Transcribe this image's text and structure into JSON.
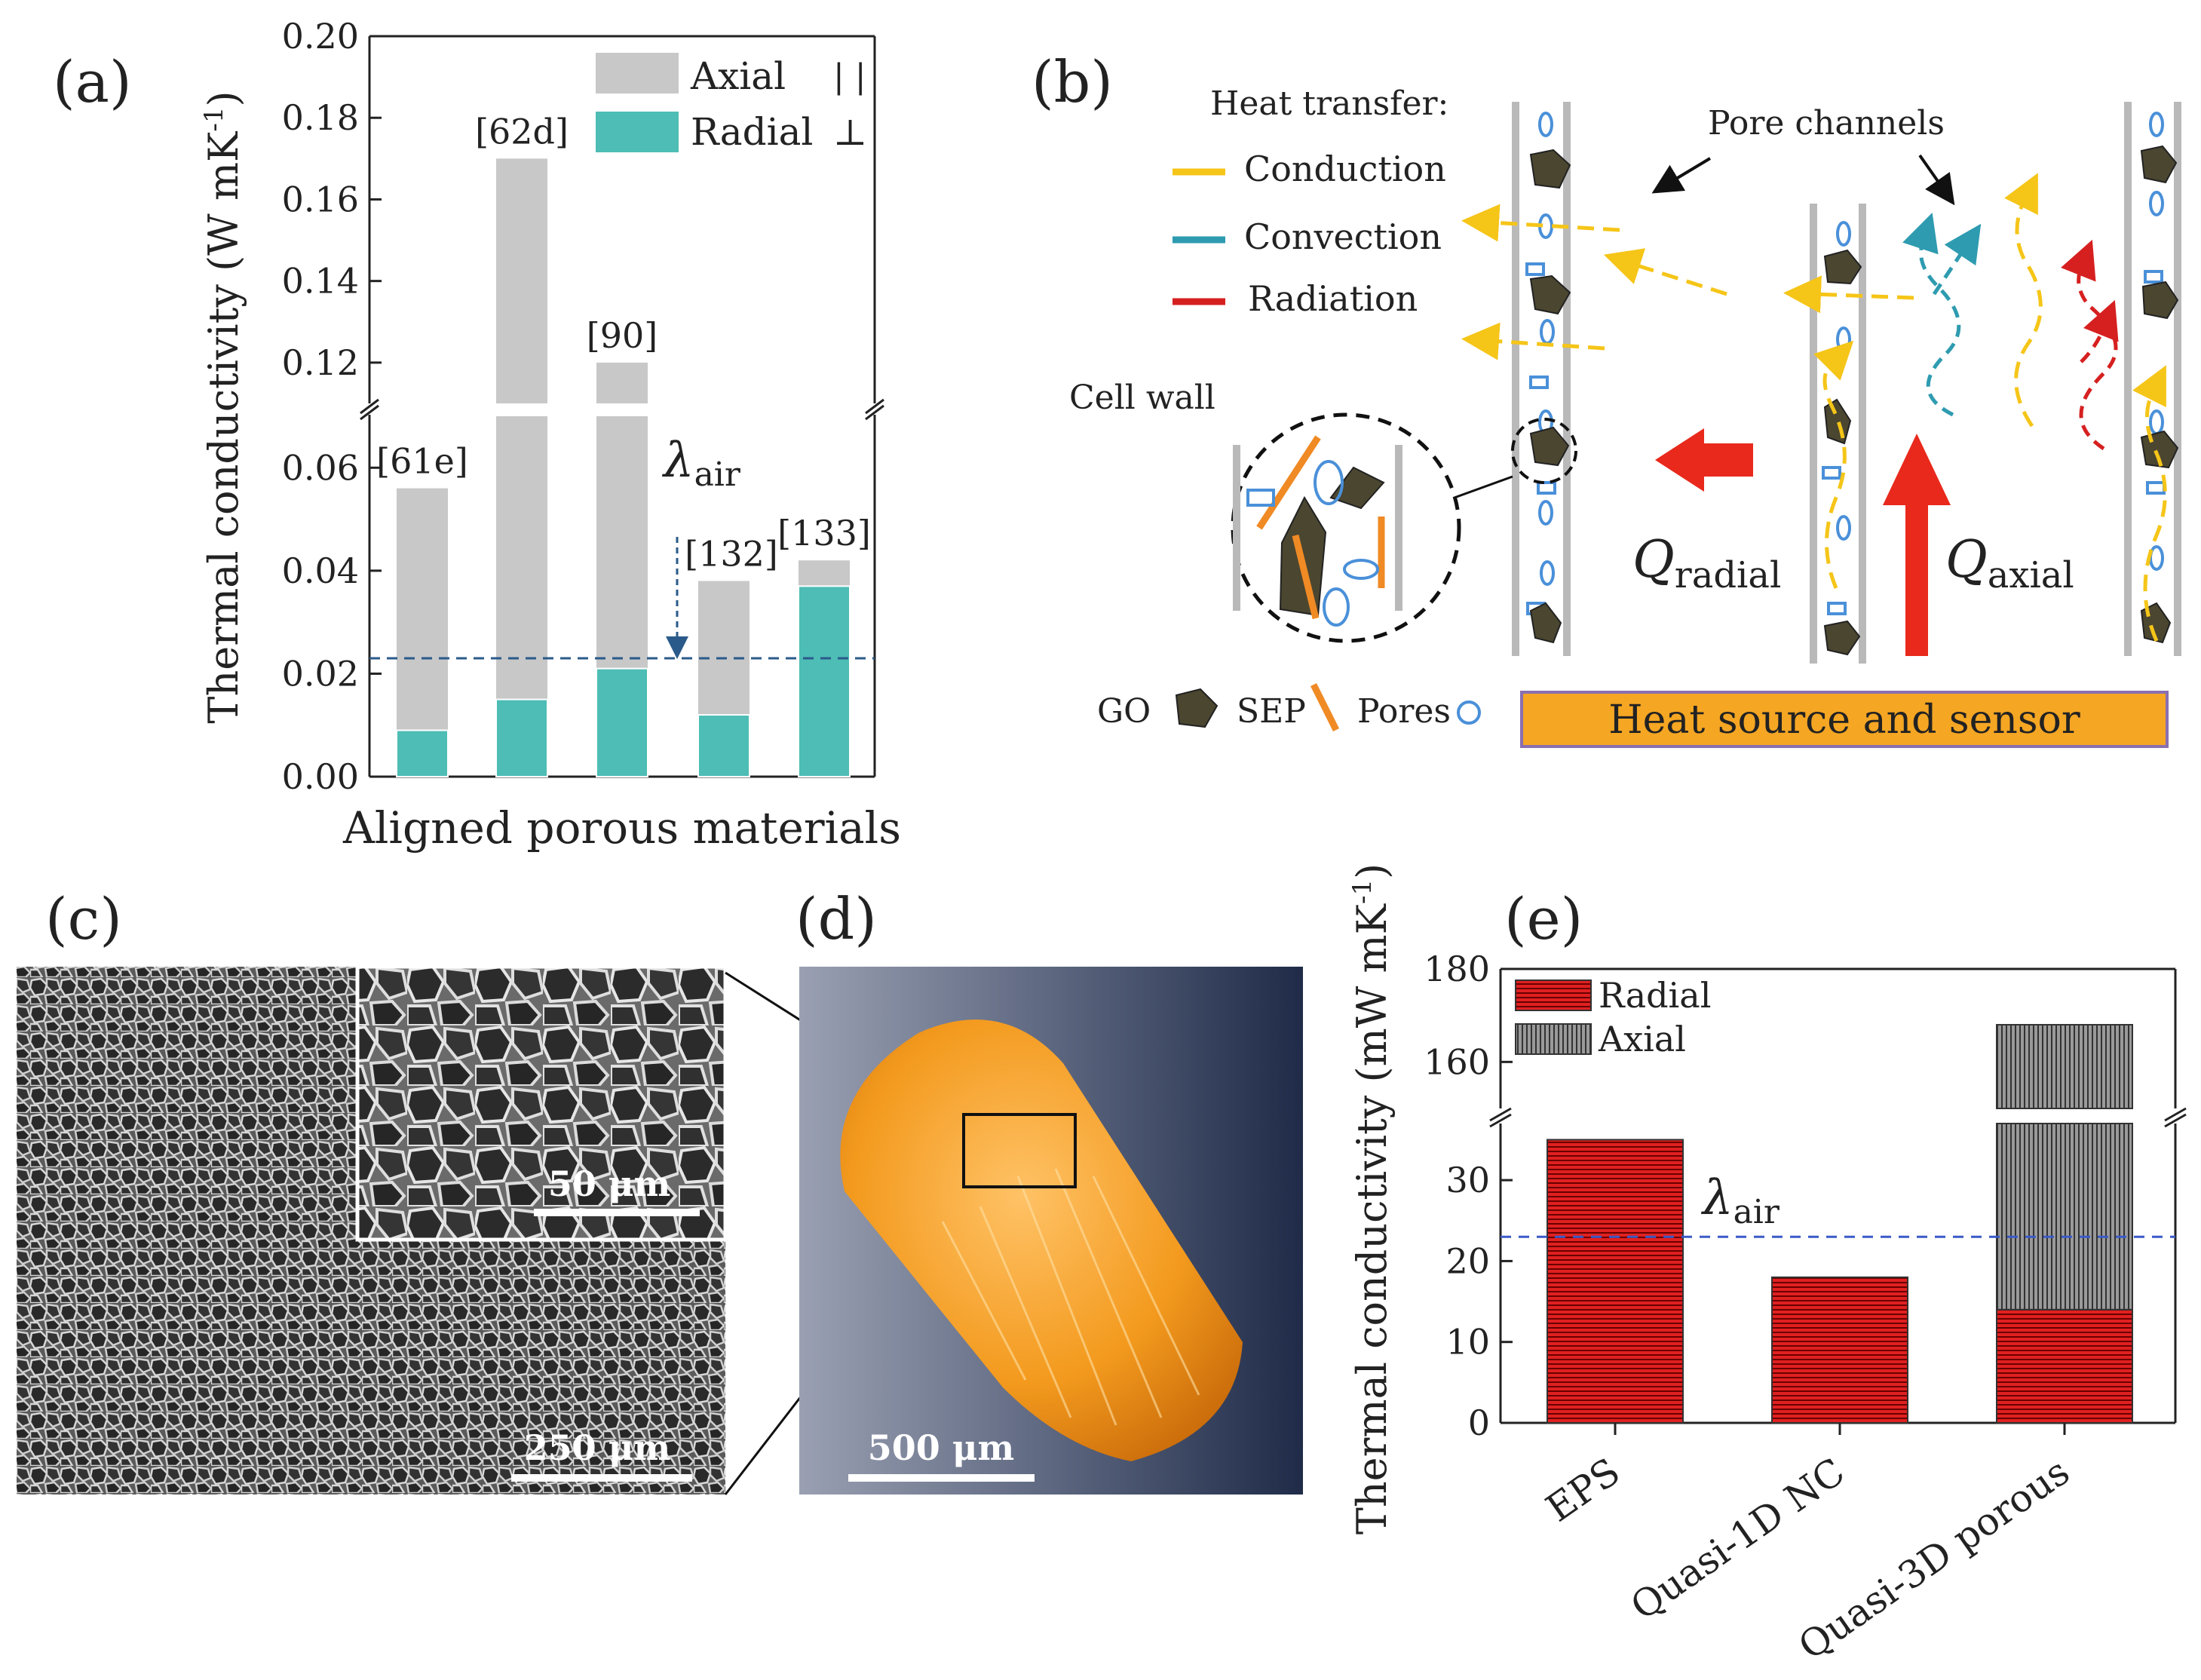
{
  "panel_labels": {
    "a": "(a)",
    "b": "(b)",
    "c": "(c)",
    "d": "(d)",
    "e": "(e)"
  },
  "colors": {
    "axial_a": "#c8c8c8",
    "radial_a": "#4dbdb5",
    "radial_e": "#e02020",
    "axial_e": "#7a7a7a",
    "conduction": "#f5c518",
    "convection": "#2e9bb0",
    "radiation": "#d62020",
    "go": "#4b4630",
    "sep": "#f08a24",
    "pores": "#4a90d9",
    "heat_source": "#f5a623",
    "air_line": "#2a5a8a"
  },
  "chart_data": [
    {
      "id": "a",
      "type": "bar",
      "stacked": true,
      "title": "",
      "xlabel": "Aligned porous materials",
      "ylabel": "Thermal conductivity (W mK",
      "ylabel_sup": "-1",
      "ylabel_close": ")",
      "axis_break": {
        "lower": [
          0,
          0.07
        ],
        "upper": [
          0.11,
          0.2
        ]
      },
      "lower_ticks": [
        "0.00",
        "0.02",
        "0.04",
        "0.06"
      ],
      "upper_ticks": [
        "0.12",
        "0.14",
        "0.16",
        "0.18",
        "0.20"
      ],
      "categories": [
        "[61e]",
        "[62d]",
        "[90]",
        "[132]",
        "[133]"
      ],
      "series": [
        {
          "name": "Radial",
          "symbol": "⊥",
          "values": [
            0.009,
            0.015,
            0.021,
            0.012,
            0.037
          ]
        },
        {
          "name": "Axial",
          "symbol": "| |",
          "values": [
            0.056,
            0.17,
            0.12,
            0.038,
            0.042
          ]
        }
      ],
      "reference_line": {
        "label": "λ",
        "sub": "air",
        "value": 0.023
      }
    },
    {
      "id": "e",
      "type": "bar",
      "stacked": true,
      "title": "",
      "xlabel": "",
      "ylabel": "Thermal conductivity (mW mK",
      "ylabel_sup": "-1",
      "ylabel_close": ")",
      "axis_break": {
        "lower": [
          0,
          37
        ],
        "upper": [
          150,
          180
        ]
      },
      "lower_ticks": [
        "0",
        "10",
        "20",
        "30"
      ],
      "upper_ticks": [
        "160",
        "180"
      ],
      "categories": [
        "EPS",
        "Quasi-1D NC",
        "Quasi-3D porous"
      ],
      "series": [
        {
          "name": "Radial",
          "values": [
            35,
            18,
            14
          ]
        },
        {
          "name": "Axial",
          "values": [
            null,
            null,
            168
          ]
        }
      ],
      "reference_line": {
        "label": "λ",
        "sub": "air",
        "value": 23
      }
    }
  ],
  "schematic_b": {
    "heat_transfer_title": "Heat transfer:",
    "legend": [
      "Conduction",
      "Convection",
      "Radiation"
    ],
    "pore_channels": "Pore channels",
    "cell_wall": "Cell wall",
    "q_radial": "Q",
    "q_radial_sub": "radial",
    "q_axial": "Q",
    "q_axial_sub": "axial",
    "go": "GO",
    "sep": "SEP",
    "pores": "Pores",
    "heat_source": "Heat source and sensor"
  },
  "images": {
    "c_scale_main": "250 μm",
    "c_scale_inset": "50 μm",
    "d_scale": "500 μm"
  }
}
